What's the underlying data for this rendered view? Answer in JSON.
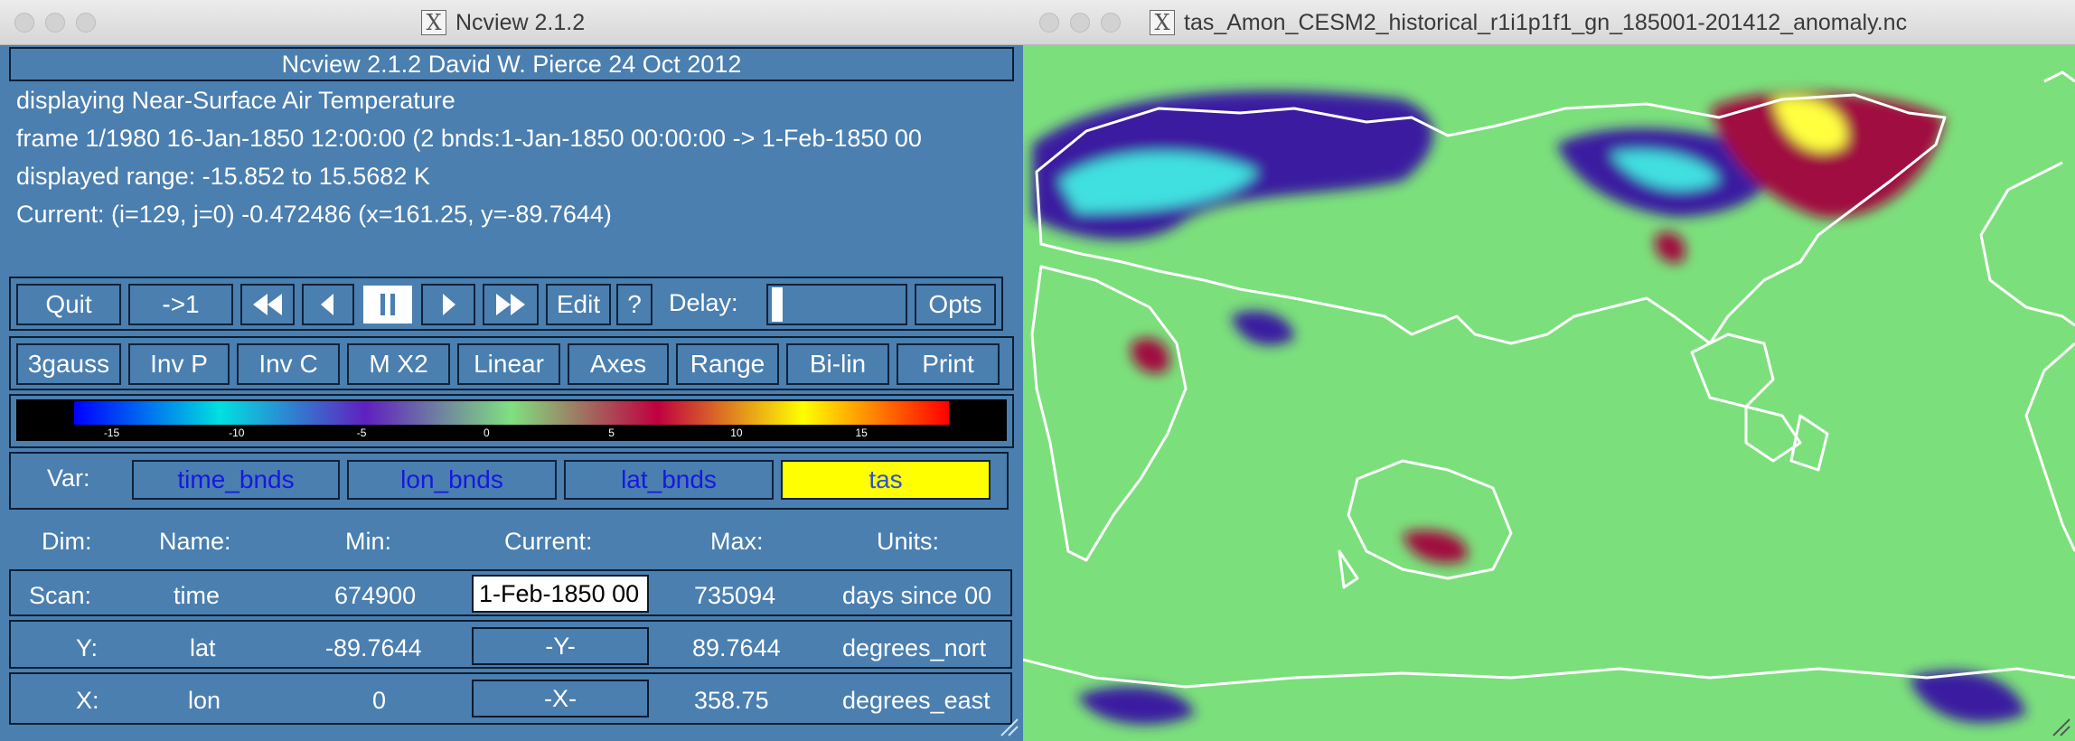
{
  "ncview_window": {
    "title": "Ncview 2.1.2",
    "header": "Ncview 2.1.2 David W. Pierce  24 Oct 2012",
    "info_lines": [
      "displaying Near-Surface Air Temperature",
      "frame 1/1980 16-Jan-1850 12:00:00 (2 bnds:1-Jan-1850 00:00:00 -> 1-Feb-1850 00",
      "displayed range: -15.852 to 15.5682 K",
      "Current: (i=129, j=0) -0.472486 (x=161.25, y=-89.7644)"
    ],
    "controls": {
      "quit": "Quit",
      "to_first": "->1",
      "rewind_icon": "fast-backward-icon",
      "step_back_icon": "step-backward-icon",
      "pause_icon": "pause-icon",
      "step_forward_icon": "play-icon",
      "fast_forward_icon": "fast-forward-icon",
      "edit": "Edit",
      "help": "?",
      "delay_label": "Delay:",
      "opts": "Opts"
    },
    "options": [
      "3gauss",
      "Inv P",
      "Inv C",
      "M X2",
      "Linear",
      "Axes",
      "Range",
      "Bi-lin",
      "Print"
    ],
    "colorbar": {
      "ticks": [
        "-15",
        "-10",
        "-5",
        "0",
        "5",
        "10",
        "15"
      ],
      "colors": [
        "#0000ff",
        "#00e0e0",
        "#6020c0",
        "#80e080",
        "#c00040",
        "#ffff00",
        "#ff0000"
      ]
    },
    "variables": {
      "label": "Var:",
      "items": [
        "time_bnds",
        "lon_bnds",
        "lat_bnds",
        "tas"
      ],
      "selected": "tas"
    },
    "dims": {
      "headers": [
        "Dim:",
        "Name:",
        "Min:",
        "Current:",
        "Max:",
        "Units:"
      ],
      "rows": [
        {
          "dim": "Scan:",
          "name": "time",
          "min": "674900",
          "current": "1-Feb-1850 00",
          "max": "735094",
          "units": "days since 00"
        },
        {
          "dim": "Y:",
          "name": "lat",
          "min": "-89.7644",
          "current": "-Y-",
          "max": "89.7644",
          "units": "degrees_nort"
        },
        {
          "dim": "X:",
          "name": "lon",
          "min": "0",
          "current": "-X-",
          "max": "358.75",
          "units": "degrees_east"
        }
      ]
    }
  },
  "map_window": {
    "title": "tas_Amon_CESM2_historical_r1i1p1f1_gn_185001-201412_anomaly.nc",
    "colors": {
      "background": "#7be07b",
      "coastline": "#ffffff",
      "cold_anomaly": "#3a1aa0",
      "cold_extreme": "#40e0e0",
      "warm_anomaly": "#a01040",
      "warm_extreme": "#ffff40"
    }
  }
}
